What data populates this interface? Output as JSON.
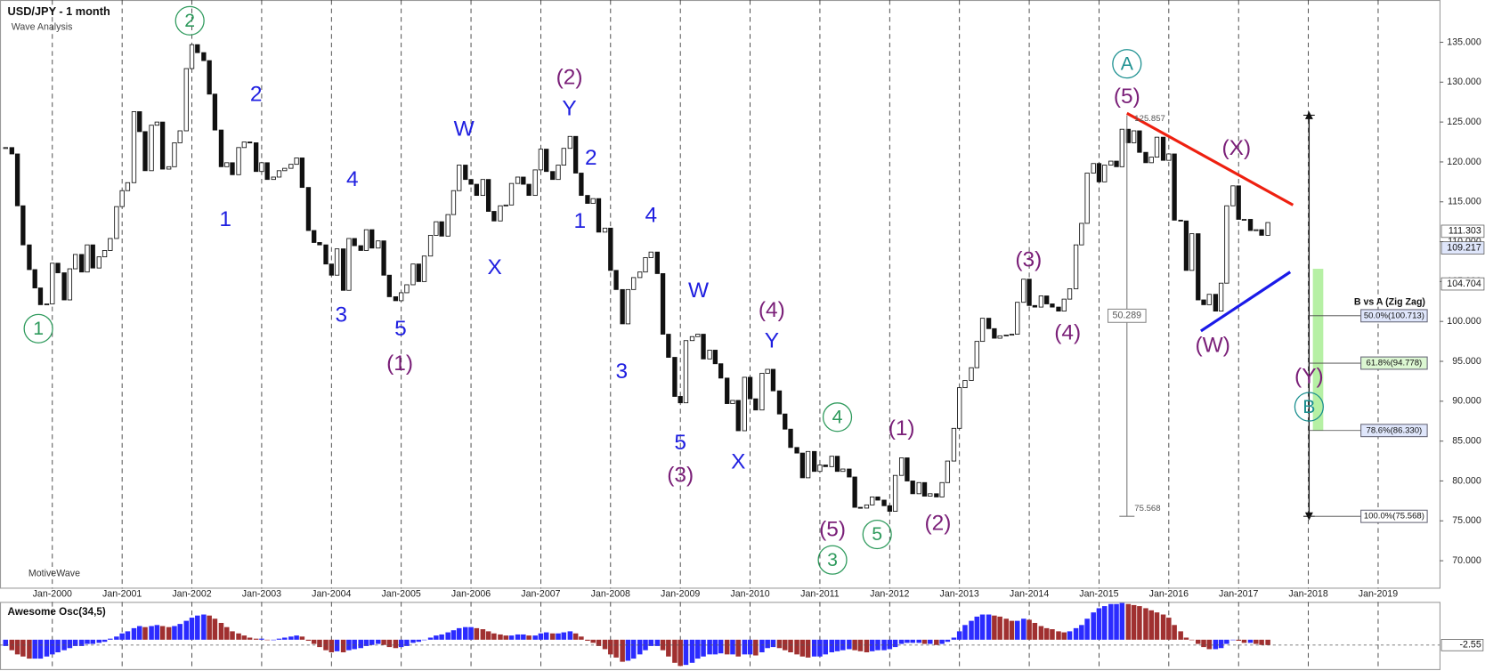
{
  "chart_data": {
    "type": "candlestick",
    "title": "USD/JPY - 1 month",
    "subtitle": "Wave Analysis",
    "watermark": "MotiveWave",
    "xlim": [
      1999.25,
      2019.88
    ],
    "xticks": [
      {
        "value": 2000,
        "label": "Jan-2000"
      },
      {
        "value": 2001,
        "label": "Jan-2001"
      },
      {
        "value": 2002,
        "label": "Jan-2002"
      },
      {
        "value": 2003,
        "label": "Jan-2003"
      },
      {
        "value": 2004,
        "label": "Jan-2004"
      },
      {
        "value": 2005,
        "label": "Jan-2005"
      },
      {
        "value": 2006,
        "label": "Jan-2006"
      },
      {
        "value": 2007,
        "label": "Jan-2007"
      },
      {
        "value": 2008,
        "label": "Jan-2008"
      },
      {
        "value": 2009,
        "label": "Jan-2009"
      },
      {
        "value": 2010,
        "label": "Jan-2010"
      },
      {
        "value": 2011,
        "label": "Jan-2011"
      },
      {
        "value": 2012,
        "label": "Jan-2012"
      },
      {
        "value": 2013,
        "label": "Jan-2013"
      },
      {
        "value": 2014,
        "label": "Jan-2014"
      },
      {
        "value": 2015,
        "label": "Jan-2015"
      },
      {
        "value": 2016,
        "label": "Jan-2016"
      },
      {
        "value": 2017,
        "label": "Jan-2017"
      },
      {
        "value": 2018,
        "label": "Jan-2018"
      },
      {
        "value": 2019,
        "label": "Jan-2019"
      }
    ],
    "xgrid": true,
    "ylim": [
      66.5,
      140.3
    ],
    "yticks": [
      {
        "value": 70,
        "label": "70.000"
      },
      {
        "value": 75,
        "label": "75.000"
      },
      {
        "value": 80,
        "label": "80.000"
      },
      {
        "value": 85,
        "label": "85.000"
      },
      {
        "value": 90,
        "label": "90.000"
      },
      {
        "value": 95,
        "label": "95.000"
      },
      {
        "value": 100,
        "label": "100.000"
      },
      {
        "value": 105,
        "label": "105.000"
      },
      {
        "value": 110,
        "label": "110.000"
      },
      {
        "value": 115,
        "label": "115.000"
      },
      {
        "value": 120,
        "label": "120.000"
      },
      {
        "value": 125,
        "label": "125.000"
      },
      {
        "value": 130,
        "label": "130.000"
      },
      {
        "value": 135,
        "label": "135.000"
      }
    ],
    "up_color": "#ffffff",
    "down_color": "#111111",
    "x": [
      1999.33,
      1999.42,
      1999.5,
      1999.58,
      1999.67,
      1999.75,
      1999.83,
      1999.92,
      2000,
      2000.08,
      2000.17,
      2000.25,
      2000.33,
      2000.42,
      2000.5,
      2000.58,
      2000.67,
      2000.75,
      2000.83,
      2000.92,
      2001,
      2001.08,
      2001.17,
      2001.25,
      2001.33,
      2001.42,
      2001.5,
      2001.58,
      2001.67,
      2001.75,
      2001.83,
      2001.92,
      2002,
      2002.08,
      2002.17,
      2002.25,
      2002.33,
      2002.42,
      2002.5,
      2002.58,
      2002.67,
      2002.75,
      2002.83,
      2002.92,
      2003,
      2003.08,
      2003.17,
      2003.25,
      2003.33,
      2003.42,
      2003.5,
      2003.58,
      2003.67,
      2003.75,
      2003.83,
      2003.92,
      2004,
      2004.08,
      2004.17,
      2004.25,
      2004.33,
      2004.42,
      2004.5,
      2004.58,
      2004.67,
      2004.75,
      2004.83,
      2004.92,
      2005,
      2005.08,
      2005.17,
      2005.25,
      2005.33,
      2005.42,
      2005.5,
      2005.58,
      2005.67,
      2005.75,
      2005.83,
      2005.92,
      2006,
      2006.08,
      2006.17,
      2006.25,
      2006.33,
      2006.42,
      2006.5,
      2006.58,
      2006.67,
      2006.75,
      2006.83,
      2006.92,
      2007,
      2007.08,
      2007.17,
      2007.25,
      2007.33,
      2007.42,
      2007.5,
      2007.58,
      2007.67,
      2007.75,
      2007.83,
      2007.92,
      2008,
      2008.08,
      2008.17,
      2008.25,
      2008.33,
      2008.42,
      2008.5,
      2008.58,
      2008.67,
      2008.75,
      2008.83,
      2008.92,
      2009,
      2009.08,
      2009.17,
      2009.25,
      2009.33,
      2009.42,
      2009.5,
      2009.58,
      2009.67,
      2009.75,
      2009.83,
      2009.92,
      2010,
      2010.08,
      2010.17,
      2010.25,
      2010.33,
      2010.42,
      2010.5,
      2010.58,
      2010.67,
      2010.75,
      2010.83,
      2010.92,
      2011,
      2011.08,
      2011.17,
      2011.25,
      2011.33,
      2011.42,
      2011.5,
      2011.58,
      2011.67,
      2011.75,
      2011.83,
      2011.92,
      2012,
      2012.08,
      2012.17,
      2012.25,
      2012.33,
      2012.42,
      2012.5,
      2012.58,
      2012.67,
      2012.75,
      2012.83,
      2012.92,
      2013,
      2013.08,
      2013.17,
      2013.25,
      2013.33,
      2013.42,
      2013.5,
      2013.58,
      2013.67,
      2013.75,
      2013.83,
      2013.92,
      2014,
      2014.08,
      2014.17,
      2014.25,
      2014.33,
      2014.42,
      2014.5,
      2014.58,
      2014.67,
      2014.75,
      2014.83,
      2014.92,
      2015,
      2015.08,
      2015.17,
      2015.25,
      2015.33,
      2015.42,
      2015.5,
      2015.58,
      2015.67,
      2015.75,
      2015.83,
      2015.92,
      2016,
      2016.08,
      2016.17,
      2016.25,
      2016.33,
      2016.42,
      2016.5,
      2016.58,
      2016.67,
      2016.75,
      2016.83,
      2016.92,
      2017,
      2017.08,
      2017.17,
      2017.25,
      2017.33,
      2017.42
    ],
    "values": [
      121.8,
      121,
      114.5,
      109.6,
      106.5,
      104.2,
      102.1,
      102.2,
      107.3,
      106.1,
      102.7,
      106.6,
      108.4,
      106.2,
      109.6,
      106.7,
      108.1,
      108.9,
      110.4,
      114.4,
      116.4,
      117.4,
      126.3,
      123.8,
      118.9,
      124.6,
      125,
      119.1,
      119.4,
      122.4,
      123.9,
      131.7,
      134.7,
      133.7,
      132.7,
      128.5,
      124,
      119.4,
      119.9,
      118.4,
      121.8,
      122.5,
      122.4,
      118.8,
      119.9,
      117.8,
      118.1,
      118.9,
      119.2,
      119.7,
      120.5,
      116.8,
      111.4,
      109.9,
      109.6,
      107.2,
      105.8,
      109.1,
      103.9,
      110.4,
      109.5,
      108.9,
      111.5,
      109.2,
      110.1,
      105.8,
      103.1,
      102.6,
      103.6,
      104.6,
      107.2,
      105,
      108.2,
      110.8,
      112.5,
      110.7,
      113.4,
      116.4,
      119.6,
      117.8,
      117.2,
      115.8,
      117.8,
      113.8,
      112.6,
      114.5,
      114.6,
      117.3,
      118.1,
      117.2,
      115.8,
      119,
      121.6,
      118.8,
      117.8,
      119.6,
      121.7,
      123.2,
      118.6,
      115.8,
      114.8,
      115.4,
      111.2,
      111.7,
      106.4,
      104,
      99.7,
      104,
      105.5,
      106.2,
      108,
      108.7,
      106,
      98.4,
      95.5,
      90.6,
      89.8,
      97.6,
      98.1,
      98.4,
      95.3,
      96.4,
      94.7,
      92.9,
      89.7,
      90.1,
      86.3,
      93,
      90.3,
      88.9,
      93.5,
      94,
      91.3,
      88.4,
      86.5,
      84.2,
      83.5,
      80.4,
      83.7,
      81.2,
      82,
      81.8,
      83.1,
      81.2,
      81.5,
      80.5,
      76.7,
      76.6,
      77,
      78,
      77.6,
      76.9,
      76.2,
      80.7,
      82.9,
      80,
      78.4,
      79.8,
      78.1,
      78.4,
      78,
      79.8,
      82.5,
      86.6,
      91.7,
      92.6,
      94.2,
      97.5,
      100.4,
      99.1,
      97.9,
      98.2,
      98.3,
      98.4,
      102.4,
      105.3,
      102,
      101.8,
      103.2,
      102.2,
      101.8,
      101.3,
      102.8,
      104.1,
      109.6,
      112.3,
      118.6,
      119.8,
      117.5,
      119.6,
      120.1,
      119.4,
      124.1,
      122.4,
      123.9,
      121.2,
      119.9,
      120.6,
      123.1,
      120.2,
      121,
      112.7,
      112.6,
      106.4,
      111,
      102.7,
      102.1,
      103.4,
      101.3,
      104.8,
      114.5,
      117,
      112.8,
      112.8,
      111.4,
      111.5,
      110.8,
      112.4
    ],
    "oscillator": {
      "title": "Awesome Osc(34,5)",
      "ylim": [
        -14,
        18
      ],
      "up_color": "#2b2bff",
      "down_color": "#a03030",
      "tag": {
        "value": -2.55,
        "label": "-2.55"
      },
      "values": [
        -3,
        -5,
        -7,
        -8,
        -9,
        -9,
        -9,
        -8,
        -7,
        -6,
        -5,
        -4,
        -3,
        -3,
        -2,
        -2,
        -1.5,
        -1,
        0.5,
        1.5,
        3,
        4,
        5.5,
        6.5,
        6,
        6.5,
        7,
        6.5,
        6,
        6.5,
        7.5,
        9,
        10.5,
        11.5,
        12,
        11.5,
        10,
        8,
        6,
        4,
        3,
        2,
        1,
        0.5,
        0.5,
        0,
        0,
        0.5,
        1,
        1.5,
        2,
        1.5,
        -0.5,
        -2,
        -3.5,
        -5,
        -6,
        -5.5,
        -6,
        -5,
        -4.5,
        -4,
        -3,
        -2.5,
        -2,
        -2.5,
        -3.5,
        -4,
        -3.5,
        -3,
        -1.5,
        -1,
        0,
        1,
        2,
        2.5,
        3.5,
        4.5,
        5.5,
        6,
        6,
        5.5,
        5,
        4,
        3,
        2.5,
        2,
        2,
        2.5,
        2.5,
        2,
        2,
        3,
        3.5,
        3,
        3,
        3.5,
        4,
        3,
        1.5,
        -0.5,
        -1.5,
        -3,
        -4.5,
        -7,
        -8.5,
        -10.5,
        -10,
        -9,
        -7,
        -5,
        -3,
        -3,
        -5,
        -8,
        -11,
        -12.5,
        -12,
        -11,
        -9,
        -8,
        -7,
        -7,
        -6.5,
        -7,
        -7,
        -8,
        -7,
        -7,
        -7.5,
        -6,
        -4,
        -3.5,
        -4,
        -5,
        -6,
        -7,
        -8,
        -8.5,
        -8,
        -8,
        -7,
        -6,
        -5.5,
        -5,
        -4.5,
        -5,
        -5.5,
        -6,
        -5.5,
        -5,
        -5,
        -4.5,
        -3.5,
        -2,
        -1.5,
        -1.5,
        -1.5,
        -2,
        -2,
        -2.5,
        -2,
        -1,
        1,
        4,
        7,
        9,
        11,
        12,
        12,
        11.5,
        11,
        10,
        9,
        9,
        10,
        9.5,
        8,
        6.5,
        5.5,
        5,
        4,
        3.5,
        4,
        5.5,
        7,
        10,
        13,
        15,
        16,
        17,
        17,
        17.5,
        17,
        16.5,
        16,
        15,
        14,
        13,
        12,
        10.5,
        7,
        4,
        1,
        0,
        -2,
        -3.5,
        -4.5,
        -4.5,
        -4,
        -2,
        0,
        -0.5,
        -1.5,
        -1.5,
        -2,
        -2.5,
        -2.55
      ]
    },
    "annotations": [
      {
        "text": "2",
        "x": 2001.97,
        "y": 137.7,
        "color": "#2e9a5c",
        "circled": true
      },
      {
        "text": "1",
        "x": 1999.8,
        "y": 99.1,
        "color": "#2e9a5c",
        "circled": true
      },
      {
        "text": "2",
        "x": 2002.92,
        "y": 128.5,
        "color": "#1f1fe0",
        "circled": false
      },
      {
        "text": "1",
        "x": 2002.48,
        "y": 112.8,
        "color": "#1f1fe0",
        "circled": false
      },
      {
        "text": "4",
        "x": 2004.3,
        "y": 117.8,
        "color": "#1f1fe0",
        "circled": false
      },
      {
        "text": "3",
        "x": 2004.14,
        "y": 100.8,
        "color": "#1f1fe0",
        "circled": false
      },
      {
        "text": "5",
        "x": 2004.99,
        "y": 99.1,
        "color": "#1f1fe0",
        "circled": false
      },
      {
        "text": "(1)",
        "x": 2004.98,
        "y": 94.7,
        "color": "#7a1f78",
        "circled": false
      },
      {
        "text": "W",
        "x": 2005.9,
        "y": 124.1,
        "color": "#1f1fe0",
        "circled": false
      },
      {
        "text": "X",
        "x": 2006.34,
        "y": 106.8,
        "color": "#1f1fe0",
        "circled": false
      },
      {
        "text": "(2)",
        "x": 2007.41,
        "y": 130.6,
        "color": "#7a1f78",
        "circled": false
      },
      {
        "text": "Y",
        "x": 2007.41,
        "y": 126.7,
        "color": "#1f1fe0",
        "circled": false
      },
      {
        "text": "2",
        "x": 2007.72,
        "y": 120.5,
        "color": "#1f1fe0",
        "circled": false
      },
      {
        "text": "1",
        "x": 2007.56,
        "y": 112.6,
        "color": "#1f1fe0",
        "circled": false
      },
      {
        "text": "4",
        "x": 2008.58,
        "y": 113.3,
        "color": "#1f1fe0",
        "circled": false
      },
      {
        "text": "3",
        "x": 2008.16,
        "y": 93.7,
        "color": "#1f1fe0",
        "circled": false
      },
      {
        "text": "W",
        "x": 2009.26,
        "y": 103.9,
        "color": "#1f1fe0",
        "circled": false
      },
      {
        "text": "5",
        "x": 2009,
        "y": 84.8,
        "color": "#1f1fe0",
        "circled": false
      },
      {
        "text": "(3)",
        "x": 2009,
        "y": 80.7,
        "color": "#7a1f78",
        "circled": false
      },
      {
        "text": "X",
        "x": 2009.83,
        "y": 82.4,
        "color": "#1f1fe0",
        "circled": false
      },
      {
        "text": "(4)",
        "x": 2010.31,
        "y": 101.4,
        "color": "#7a1f78",
        "circled": false
      },
      {
        "text": "Y",
        "x": 2010.31,
        "y": 97.6,
        "color": "#1f1fe0",
        "circled": false
      },
      {
        "text": "4",
        "x": 2011.25,
        "y": 88,
        "color": "#2e9a5c",
        "circled": true
      },
      {
        "text": "(5)",
        "x": 2011.18,
        "y": 73.9,
        "color": "#7a1f78",
        "circled": false
      },
      {
        "text": "3",
        "x": 2011.18,
        "y": 70.1,
        "color": "#2e9a5c",
        "circled": true
      },
      {
        "text": "5",
        "x": 2011.82,
        "y": 73.3,
        "color": "#2e9a5c",
        "circled": true
      },
      {
        "text": "(1)",
        "x": 2012.17,
        "y": 86.6,
        "color": "#7a1f78",
        "circled": false
      },
      {
        "text": "(2)",
        "x": 2012.69,
        "y": 74.7,
        "color": "#7a1f78",
        "circled": false
      },
      {
        "text": "(3)",
        "x": 2013.99,
        "y": 107.7,
        "color": "#7a1f78",
        "circled": false
      },
      {
        "text": "(4)",
        "x": 2014.55,
        "y": 98.6,
        "color": "#7a1f78",
        "circled": false
      },
      {
        "text": "A",
        "x": 2015.4,
        "y": 132.3,
        "color": "#1a8f8f",
        "circled": true
      },
      {
        "text": "(5)",
        "x": 2015.4,
        "y": 128.2,
        "color": "#7a1f78",
        "circled": false
      },
      {
        "text": "(X)",
        "x": 2016.97,
        "y": 121.7,
        "color": "#7a1f78",
        "circled": false
      },
      {
        "text": "(W)",
        "x": 2016.63,
        "y": 97,
        "color": "#7a1f78",
        "circled": false
      },
      {
        "text": "(Y)",
        "x": 2018.01,
        "y": 93.1,
        "color": "#7a1f78",
        "circled": false
      },
      {
        "text": "B",
        "x": 2018.01,
        "y": 89.3,
        "color": "#1a8f8f",
        "circled": true
      }
    ],
    "trendlines": [
      {
        "color": "#ee2010",
        "x": [
          2015.4,
          2017.78
        ],
        "y": [
          126.1,
          114.6
        ]
      },
      {
        "color": "#1a1ae8",
        "x": [
          2016.46,
          2017.74
        ],
        "y": [
          98.8,
          106.2
        ]
      }
    ],
    "swing": {
      "x": 2015.4,
      "high": {
        "value": 125.857,
        "label": "125.857"
      },
      "low": {
        "value": 75.568,
        "label": "75.568"
      },
      "range": {
        "value": 50.289,
        "label": "50.289"
      }
    },
    "fib": {
      "title": "B vs A (Zig Zag)",
      "x": 2018.01,
      "range": [
        125.857,
        75.568
      ],
      "zone": [
        86.3,
        106.6
      ],
      "zone_color": "#b6f0a4",
      "levels": [
        {
          "value": 100.713,
          "label": "50.0%(100.713)",
          "color": "#dfe6fb"
        },
        {
          "value": 94.778,
          "label": "61.8%(94.778)",
          "color": "#dcf7d2"
        },
        {
          "value": 86.33,
          "label": "78.6%(86.330)",
          "color": "#dfe6fb"
        },
        {
          "value": 75.568,
          "label": "100.0%(75.568)",
          "color": "#ffffff"
        }
      ]
    },
    "price_tags": [
      {
        "value": 111.303,
        "label": "111.303",
        "color": "#ffffff"
      },
      {
        "value": 109.217,
        "label": "109.217",
        "color": "#dfe6fb"
      },
      {
        "value": 104.704,
        "label": "104.704",
        "color": "#ffffff"
      }
    ]
  }
}
